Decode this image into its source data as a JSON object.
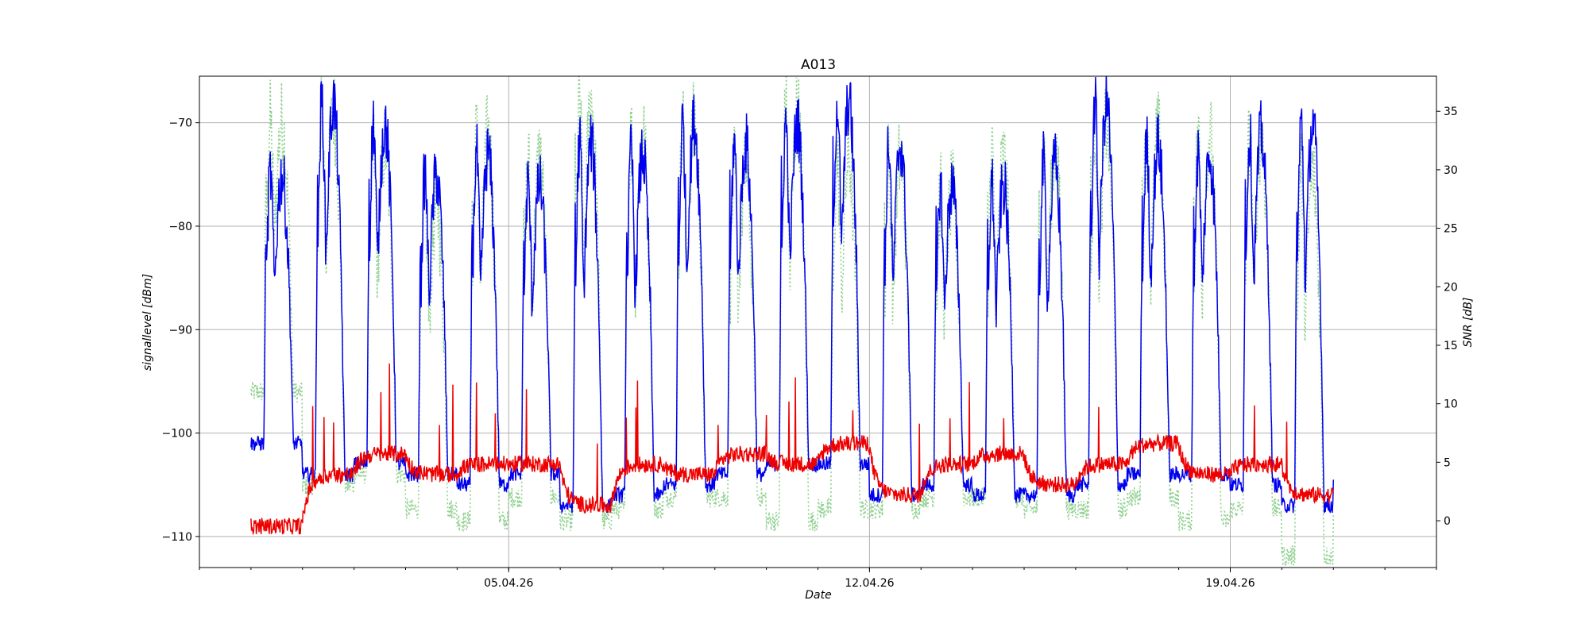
{
  "chart_data": {
    "type": "line",
    "title": "A013",
    "xlabel": "Date",
    "ylabel_left": "signallevel [dBm]",
    "ylabel_right": "SNR [dB]",
    "x_ticks": [
      "05.04.26",
      "12.04.26",
      "19.04.26"
    ],
    "x_range": [
      "2026-03-30",
      "2026-04-23"
    ],
    "x_data_range": [
      "2026-03-31",
      "2026-04-21"
    ],
    "ylim_left": [
      -113,
      -65.5
    ],
    "ylim_right": [
      -4,
      38
    ],
    "yticks_left": [
      -110,
      -100,
      -90,
      -80,
      -70
    ],
    "yticks_right": [
      0,
      5,
      10,
      15,
      20,
      25,
      30,
      35
    ],
    "grid": true,
    "colors": {
      "signal": "#0000ee",
      "noise": "#ee0000",
      "snr": "#90d090"
    },
    "series": [
      {
        "axis": "left",
        "style": "blue solid",
        "daily_peak": [
          -75,
          -68,
          -70,
          -75,
          -73,
          -76,
          -72,
          -73,
          -70,
          -72,
          -70,
          -68,
          -72,
          -76,
          -76,
          -74,
          -68,
          -72,
          -73,
          -71,
          -70,
          -70
        ],
        "daily_trough": [
          -101,
          -104,
          -103,
          -104,
          -105,
          -104,
          -107,
          -106,
          -105,
          -104,
          -103,
          -103,
          -106,
          -105,
          -106,
          -106,
          -105,
          -104,
          -104,
          -105,
          -107,
          -105
        ]
      },
      {
        "axis": "left",
        "style": "red solid",
        "daily_level": [
          -109,
          -104,
          -102,
          -104,
          -103,
          -103,
          -107,
          -103,
          -104,
          -102,
          -103,
          -101,
          -106,
          -103,
          -102,
          -105,
          -103,
          -101,
          -104,
          -103,
          -106,
          -105
        ]
      },
      {
        "axis": "right",
        "style": "light green dotted",
        "daily_peak": [
          34,
          35,
          32,
          27,
          33,
          31,
          36,
          33,
          34,
          30,
          35,
          31,
          31,
          28,
          31,
          32,
          34,
          33,
          33,
          33,
          30,
          33
        ],
        "daily_trough": [
          11,
          3,
          4,
          1,
          0,
          2,
          0,
          1,
          2,
          2,
          0,
          1,
          1,
          2,
          2,
          1,
          1,
          2,
          0,
          1,
          -3,
          1
        ]
      }
    ]
  }
}
